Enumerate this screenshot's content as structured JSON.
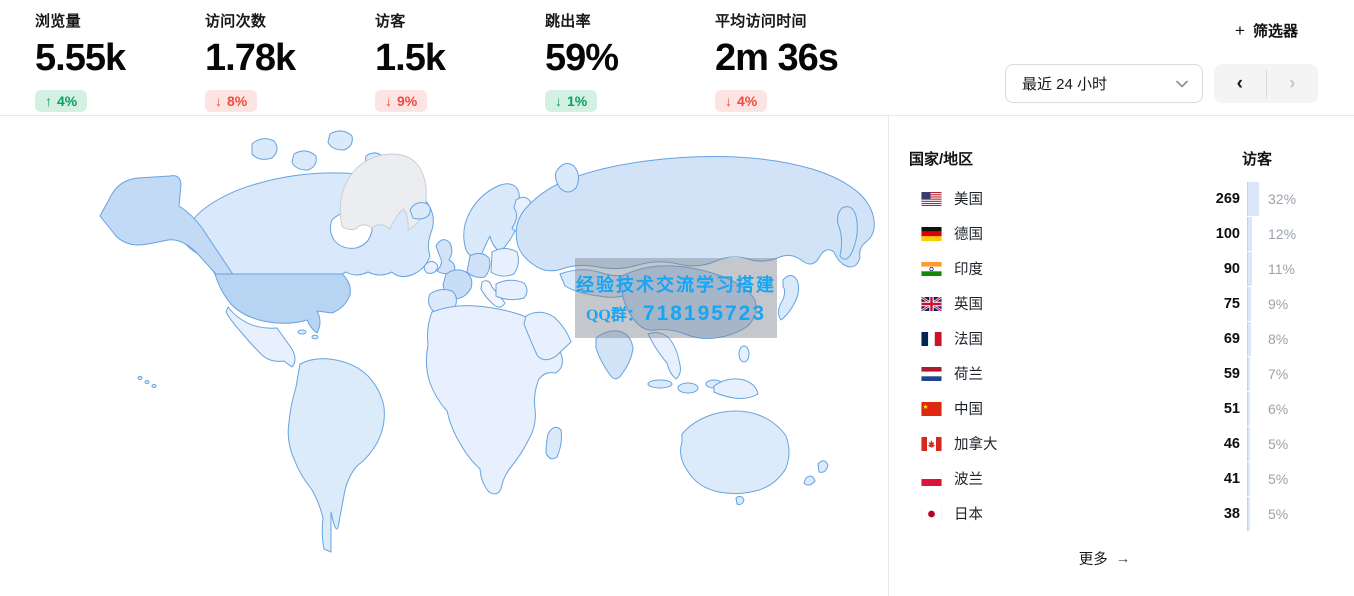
{
  "stats": [
    {
      "label": "浏览量",
      "value": "5.55k",
      "arrow": "↑",
      "change": "4%",
      "trend": "positive"
    },
    {
      "label": "访问次数",
      "value": "1.78k",
      "arrow": "↓",
      "change": "8%",
      "trend": "negative"
    },
    {
      "label": "访客",
      "value": "1.5k",
      "arrow": "↓",
      "change": "9%",
      "trend": "negative"
    },
    {
      "label": "跳出率",
      "value": "59%",
      "arrow": "↓",
      "change": "1%",
      "trend": "positive"
    },
    {
      "label": "平均访问时间",
      "value": "2m 36s",
      "arrow": "↓",
      "change": "4%",
      "trend": "negative"
    }
  ],
  "toolbar": {
    "filter_label": "筛选器",
    "filter_plus": "+",
    "date_range": "最近 24 小时",
    "prev_label": "‹",
    "next_label": "›"
  },
  "map": {
    "watermark_line1": "经验技术交流学习搭建",
    "watermark_line2_label": "QQ群：",
    "watermark_line2_number": "718195723"
  },
  "countries": {
    "header_name": "国家/地区",
    "header_metric": "访客",
    "rows": [
      {
        "flag": "us",
        "name": "美国",
        "value": "269",
        "pct": "32%"
      },
      {
        "flag": "de",
        "name": "德国",
        "value": "100",
        "pct": "12%"
      },
      {
        "flag": "in",
        "name": "印度",
        "value": "90",
        "pct": "11%"
      },
      {
        "flag": "gb",
        "name": "英国",
        "value": "75",
        "pct": "9%"
      },
      {
        "flag": "fr",
        "name": "法国",
        "value": "69",
        "pct": "8%"
      },
      {
        "flag": "nl",
        "name": "荷兰",
        "value": "59",
        "pct": "7%"
      },
      {
        "flag": "cn",
        "name": "中国",
        "value": "51",
        "pct": "6%"
      },
      {
        "flag": "ca",
        "name": "加拿大",
        "value": "46",
        "pct": "5%"
      },
      {
        "flag": "pl",
        "name": "波兰",
        "value": "41",
        "pct": "5%"
      },
      {
        "flag": "jp",
        "name": "日本",
        "value": "38",
        "pct": "5%"
      }
    ],
    "more_label": "更多",
    "more_arrow": "→"
  },
  "colors": {
    "positive_bg": "#d4f0e2",
    "positive_text": "#0d9f5d",
    "negative_bg": "#fbe4e1",
    "negative_text": "#f14a3e",
    "map_land": "#e7f0fc",
    "map_highlight": "#b7d5f3",
    "map_stroke": "#66a3e0",
    "watermark_text": "#18a5f3"
  }
}
